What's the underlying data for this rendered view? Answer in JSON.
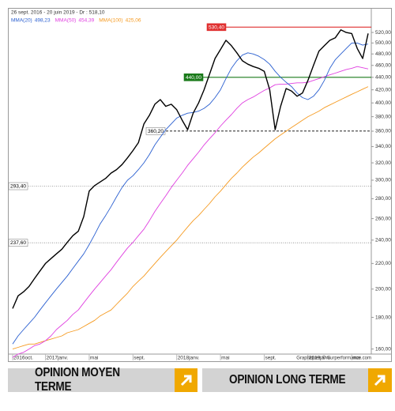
{
  "chart_data": {
    "type": "line",
    "title": "26 sept. 2016 - 20 juin 2019 - Dr : 518,10",
    "credit": "Graphiques © Surperformance.com",
    "log_scale": true,
    "ylim": [
      157,
      550
    ],
    "yticks": [
      {
        "value": 160,
        "label": "160,00"
      },
      {
        "value": 180,
        "label": "180,00"
      },
      {
        "value": 200,
        "label": "200,00"
      },
      {
        "value": 220,
        "label": "220,00"
      },
      {
        "value": 240,
        "label": "240,00"
      },
      {
        "value": 260,
        "label": "260,00"
      },
      {
        "value": 280,
        "label": "280,00"
      },
      {
        "value": 300,
        "label": "300,00"
      },
      {
        "value": 320,
        "label": "320,00"
      },
      {
        "value": 340,
        "label": "340,00"
      },
      {
        "value": 360,
        "label": "360,00"
      },
      {
        "value": 380,
        "label": "380,00"
      },
      {
        "value": 400,
        "label": "400,00"
      },
      {
        "value": 420,
        "label": "420,00"
      },
      {
        "value": 440,
        "label": "440,00"
      },
      {
        "value": 460,
        "label": "460,00"
      },
      {
        "value": 480,
        "label": "480,00"
      },
      {
        "value": 500,
        "label": "500,00"
      },
      {
        "value": 520,
        "label": "520,00"
      }
    ],
    "categories": [
      "2016oct.",
      null,
      null,
      null,
      null,
      null,
      "2017janv.",
      null,
      null,
      null,
      null,
      null,
      null,
      null,
      "mai",
      null,
      null,
      null,
      null,
      null,
      null,
      null,
      "sept.",
      null,
      null,
      null,
      null,
      null,
      null,
      null,
      "2018janv.",
      null,
      null,
      null,
      null,
      null,
      null,
      null,
      "mai",
      null,
      null,
      null,
      null,
      null,
      null,
      null,
      "sept.",
      null,
      null,
      null,
      null,
      null,
      null,
      null,
      "2019janv.",
      null,
      null,
      null,
      null,
      null,
      null,
      null,
      "mai",
      null,
      null,
      null
    ],
    "series": [
      {
        "color": "#000000",
        "values": [
          186,
          195,
          198,
          202,
          208,
          214,
          220,
          224,
          228,
          232,
          238,
          244,
          248,
          262,
          288,
          294,
          298,
          302,
          308,
          312,
          318,
          326,
          335,
          345,
          370,
          382,
          398,
          405,
          395,
          398,
          390,
          375,
          362,
          385,
          400,
          420,
          445,
          472,
          488,
          505,
          495,
          482,
          468,
          462,
          458,
          455,
          450,
          420,
          362,
          395,
          422,
          418,
          410,
          415,
          435,
          460,
          485,
          495,
          505,
          510,
          525,
          520,
          518,
          490,
          472,
          518.1
        ]
      },
      {
        "name": "MMA(20)",
        "last": "498,23",
        "color": "#2a5fd0",
        "values": [
          163,
          168,
          172,
          176,
          180,
          185,
          190,
          195,
          200,
          205,
          210,
          216,
          222,
          228,
          236,
          245,
          255,
          263,
          272,
          282,
          292,
          300,
          305,
          312,
          320,
          330,
          342,
          352,
          362,
          370,
          378,
          382,
          385,
          386,
          388,
          392,
          398,
          408,
          420,
          438,
          455,
          468,
          478,
          482,
          480,
          476,
          470,
          462,
          450,
          440,
          432,
          425,
          415,
          408,
          405,
          410,
          420,
          435,
          455,
          470,
          480,
          490,
          500,
          500,
          496,
          498
        ]
      },
      {
        "name": "MMA(50)",
        "last": "454,39",
        "color": "#e040e0",
        "values": [
          155,
          157,
          158,
          160,
          162,
          163,
          165,
          168,
          172,
          175,
          178,
          182,
          185,
          190,
          195,
          200,
          205,
          210,
          215,
          221,
          227,
          233,
          238,
          244,
          250,
          258,
          267,
          275,
          283,
          292,
          300,
          308,
          317,
          325,
          333,
          342,
          350,
          358,
          367,
          375,
          383,
          392,
          400,
          405,
          409,
          414,
          419,
          423,
          428,
          429,
          429,
          430,
          431,
          431,
          432,
          435,
          438,
          441,
          444,
          447,
          450,
          453,
          455,
          458,
          456,
          454
        ]
      },
      {
        "name": "MMA(100)",
        "last": "425,06",
        "color": "#f59a20",
        "values": [
          160,
          161,
          162,
          163,
          163,
          164,
          165,
          166,
          167,
          168,
          170,
          171,
          172,
          174,
          176,
          178,
          181,
          183,
          185,
          189,
          193,
          197,
          202,
          206,
          210,
          215,
          220,
          225,
          230,
          235,
          240,
          246,
          252,
          258,
          263,
          269,
          275,
          282,
          288,
          295,
          302,
          308,
          315,
          321,
          327,
          332,
          338,
          344,
          350,
          355,
          360,
          365,
          370,
          375,
          380,
          384,
          388,
          393,
          397,
          401,
          405,
          409,
          413,
          417,
          421,
          425
        ]
      }
    ],
    "levels": [
      {
        "value": 530.4,
        "label": "530,40",
        "color": "#e03030",
        "style": "solid"
      },
      {
        "value": 440,
        "label": "440,00",
        "color": "#1a7a1a",
        "style": "solid"
      },
      {
        "value": 360.2,
        "label": "360,20",
        "color": "#000000",
        "style": "dashed"
      },
      {
        "value": 293.4,
        "label": "293,40",
        "color": "#888888",
        "style": "dotted"
      },
      {
        "value": 237.6,
        "label": "237,60",
        "color": "#888888",
        "style": "dotted"
      }
    ]
  },
  "buttons": [
    {
      "label": "OPINION MOYEN TERME"
    },
    {
      "label": "OPINION LONG TERME"
    }
  ]
}
